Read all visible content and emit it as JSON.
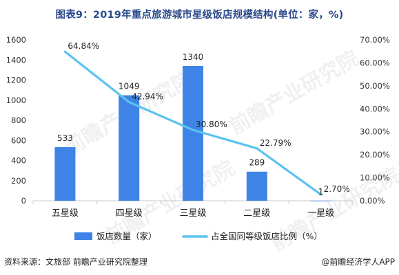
{
  "title": "图表9：2019年重点旅游城市星级饭店规模结构(单位：家，%)",
  "footer": {
    "source": "资料来源：文旅部 前瞻产业研究院整理",
    "brand": "@前瞻经济学人APP"
  },
  "watermark": "前瞻产业研究院",
  "colors": {
    "bar": "#3e84e6",
    "line": "#5bc2f0"
  },
  "chart_data": {
    "type": "bar",
    "categories": [
      "五星级",
      "四星级",
      "三星级",
      "二星级",
      "一星级"
    ],
    "series": [
      {
        "name": "饭店数量（家）",
        "type": "bar",
        "axis": "left",
        "values": [
          533,
          1049,
          1340,
          289,
          1
        ],
        "labels": [
          "533",
          "1049",
          "1340",
          "289",
          "1"
        ]
      },
      {
        "name": "占全国同等级饭店比例（%）",
        "type": "line",
        "axis": "right",
        "values": [
          64.84,
          42.94,
          30.8,
          22.79,
          2.7
        ],
        "labels": [
          "64.84%",
          "42.94%",
          "30.80%",
          "22.79%",
          "2.70%"
        ]
      }
    ],
    "y_left": {
      "min": 0,
      "max": 1600,
      "ticks": [
        "0",
        "200",
        "400",
        "600",
        "800",
        "1000",
        "1200",
        "1400",
        "1600"
      ]
    },
    "y_right": {
      "min": 0,
      "max": 70,
      "ticks": [
        "0.00%",
        "10.00%",
        "20.00%",
        "30.00%",
        "40.00%",
        "50.00%",
        "60.00%",
        "70.00%"
      ]
    },
    "legend": "bottom"
  }
}
